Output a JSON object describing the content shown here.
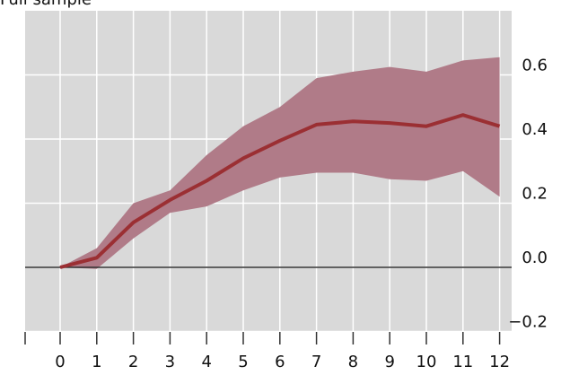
{
  "header": {
    "partial_text": "Full sample"
  },
  "colors": {
    "background": "#d9d9d9",
    "grid": "#ffffff",
    "band": "#b07b88",
    "line": "#9b2f33",
    "zero_line": "#333333"
  },
  "chart_data": {
    "type": "line",
    "title": "",
    "xlabel": "",
    "ylabel": "",
    "x": [
      0,
      1,
      2,
      3,
      4,
      5,
      6,
      7,
      8,
      9,
      10,
      11,
      12
    ],
    "xlim": [
      -1,
      12
    ],
    "ylim": [
      -0.25,
      0.8
    ],
    "y_ticks": [
      -0.2,
      0.0,
      0.2,
      0.4,
      0.6
    ],
    "y_tick_labels": [
      "−0.2",
      "0.0",
      "0.2",
      "0.4",
      "0.6"
    ],
    "x_tick_labels": [
      "0",
      "1",
      "2",
      "3",
      "4",
      "5",
      "6",
      "7",
      "8",
      "9",
      "10",
      "11",
      "12"
    ],
    "y_axis_position": "right",
    "grid": true,
    "zero_line": true,
    "series": [
      {
        "values": [
          0.0,
          0.03,
          0.14,
          0.21,
          0.27,
          0.34,
          0.395,
          0.445,
          0.455,
          0.45,
          0.44,
          0.475,
          0.44
        ]
      }
    ],
    "band": {
      "upper": [
        0.0,
        0.06,
        0.2,
        0.24,
        0.35,
        0.44,
        0.5,
        0.59,
        0.61,
        0.625,
        0.61,
        0.645,
        0.655
      ],
      "lower": [
        0.0,
        -0.005,
        0.09,
        0.17,
        0.19,
        0.24,
        0.28,
        0.295,
        0.295,
        0.275,
        0.27,
        0.3,
        0.22
      ]
    }
  }
}
